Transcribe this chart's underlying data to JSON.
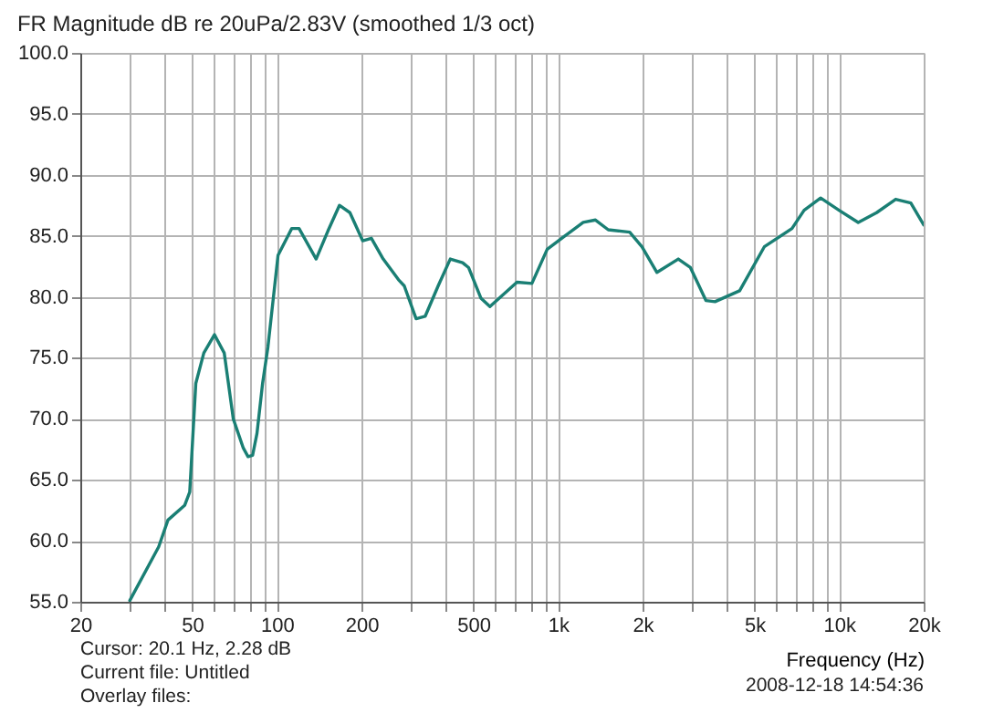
{
  "chart_data": {
    "type": "line",
    "title": "FR Magnitude dB re 20uPa/2.83V (smoothed 1/3 oct)",
    "xlabel": "Frequency (Hz)",
    "annotations": [
      "Cursor: 20.1 Hz, 2.28 dB",
      "Current file: Untitled",
      "Overlay files:",
      "2008-12-18 14:54:36"
    ],
    "log": "x",
    "grid": true,
    "legend": false,
    "marker": "none",
    "line_style": "solid",
    "xlim": [
      20,
      20000
    ],
    "ylim": [
      55,
      100
    ],
    "xticks": [
      20,
      {
        "value": 30,
        "label": null
      },
      {
        "value": 40,
        "label": null
      },
      50,
      {
        "value": 60,
        "label": null
      },
      {
        "value": 70,
        "label": null
      },
      {
        "value": 80,
        "label": null
      },
      {
        "value": 90,
        "label": null
      },
      100,
      200,
      {
        "value": 300,
        "label": null
      },
      {
        "value": 400,
        "label": null
      },
      500,
      {
        "value": 600,
        "label": null
      },
      {
        "value": 700,
        "label": null
      },
      {
        "value": 800,
        "label": null
      },
      {
        "value": 900,
        "label": null
      },
      {
        "value": 1000,
        "label": "1k"
      },
      {
        "value": 2000,
        "label": "2k"
      },
      {
        "value": 3000,
        "label": null
      },
      {
        "value": 4000,
        "label": null
      },
      {
        "value": 5000,
        "label": "5k"
      },
      {
        "value": 6000,
        "label": null
      },
      {
        "value": 7000,
        "label": null
      },
      {
        "value": 8000,
        "label": null
      },
      {
        "value": 9000,
        "label": null
      },
      {
        "value": 10000,
        "label": "10k"
      },
      {
        "value": 20000,
        "label": "20k"
      }
    ],
    "yticks": [
      {
        "value": 55,
        "label": "55.0"
      },
      {
        "value": 60,
        "label": "60.0"
      },
      {
        "value": 65,
        "label": "65.0"
      },
      {
        "value": 70,
        "label": "70.0"
      },
      {
        "value": 75,
        "label": "75.0"
      },
      {
        "value": 80,
        "label": "80.0"
      },
      {
        "value": 85,
        "label": "85.0"
      },
      {
        "value": 90,
        "label": "90.0"
      },
      {
        "value": 95,
        "label": "95.0"
      },
      {
        "value": 100,
        "label": "100.0"
      }
    ],
    "series": [
      {
        "color": "#1a7f74",
        "x": [
          30,
          38,
          41,
          47,
          49,
          51.5,
          55,
          60,
          65,
          70,
          76,
          79,
          82,
          85,
          89,
          93,
          101,
          113,
          120,
          138,
          152,
          167,
          182,
          202,
          217,
          239,
          271,
          284,
          313,
          337,
          375,
          414,
          458,
          481,
          532,
          573,
          586,
          715,
          808,
          916,
          1060,
          1230,
          1360,
          1510,
          1800,
          1990,
          2250,
          2680,
          2960,
          3360,
          3620,
          4430,
          5420,
          6800,
          7510,
          8600,
          10000,
          11700,
          13600,
          15900,
          18000,
          20000
        ],
        "values": [
          55.1,
          59.5,
          61.7,
          62.9,
          64.0,
          72.9,
          75.4,
          76.9,
          75.4,
          70.0,
          67.6,
          66.9,
          67.0,
          68.8,
          72.9,
          75.9,
          83.4,
          85.6,
          85.6,
          83.1,
          85.4,
          87.5,
          86.9,
          84.6,
          84.8,
          83.1,
          81.4,
          80.9,
          78.2,
          78.4,
          80.9,
          83.1,
          82.8,
          82.4,
          79.9,
          79.2,
          79.4,
          81.2,
          81.1,
          83.9,
          85.0,
          86.1,
          86.3,
          85.5,
          85.3,
          84.1,
          82.0,
          83.1,
          82.4,
          79.7,
          79.6,
          80.5,
          84.1,
          85.6,
          87.1,
          88.1,
          87.1,
          86.1,
          86.9,
          88.0,
          87.7,
          85.9
        ]
      }
    ]
  }
}
